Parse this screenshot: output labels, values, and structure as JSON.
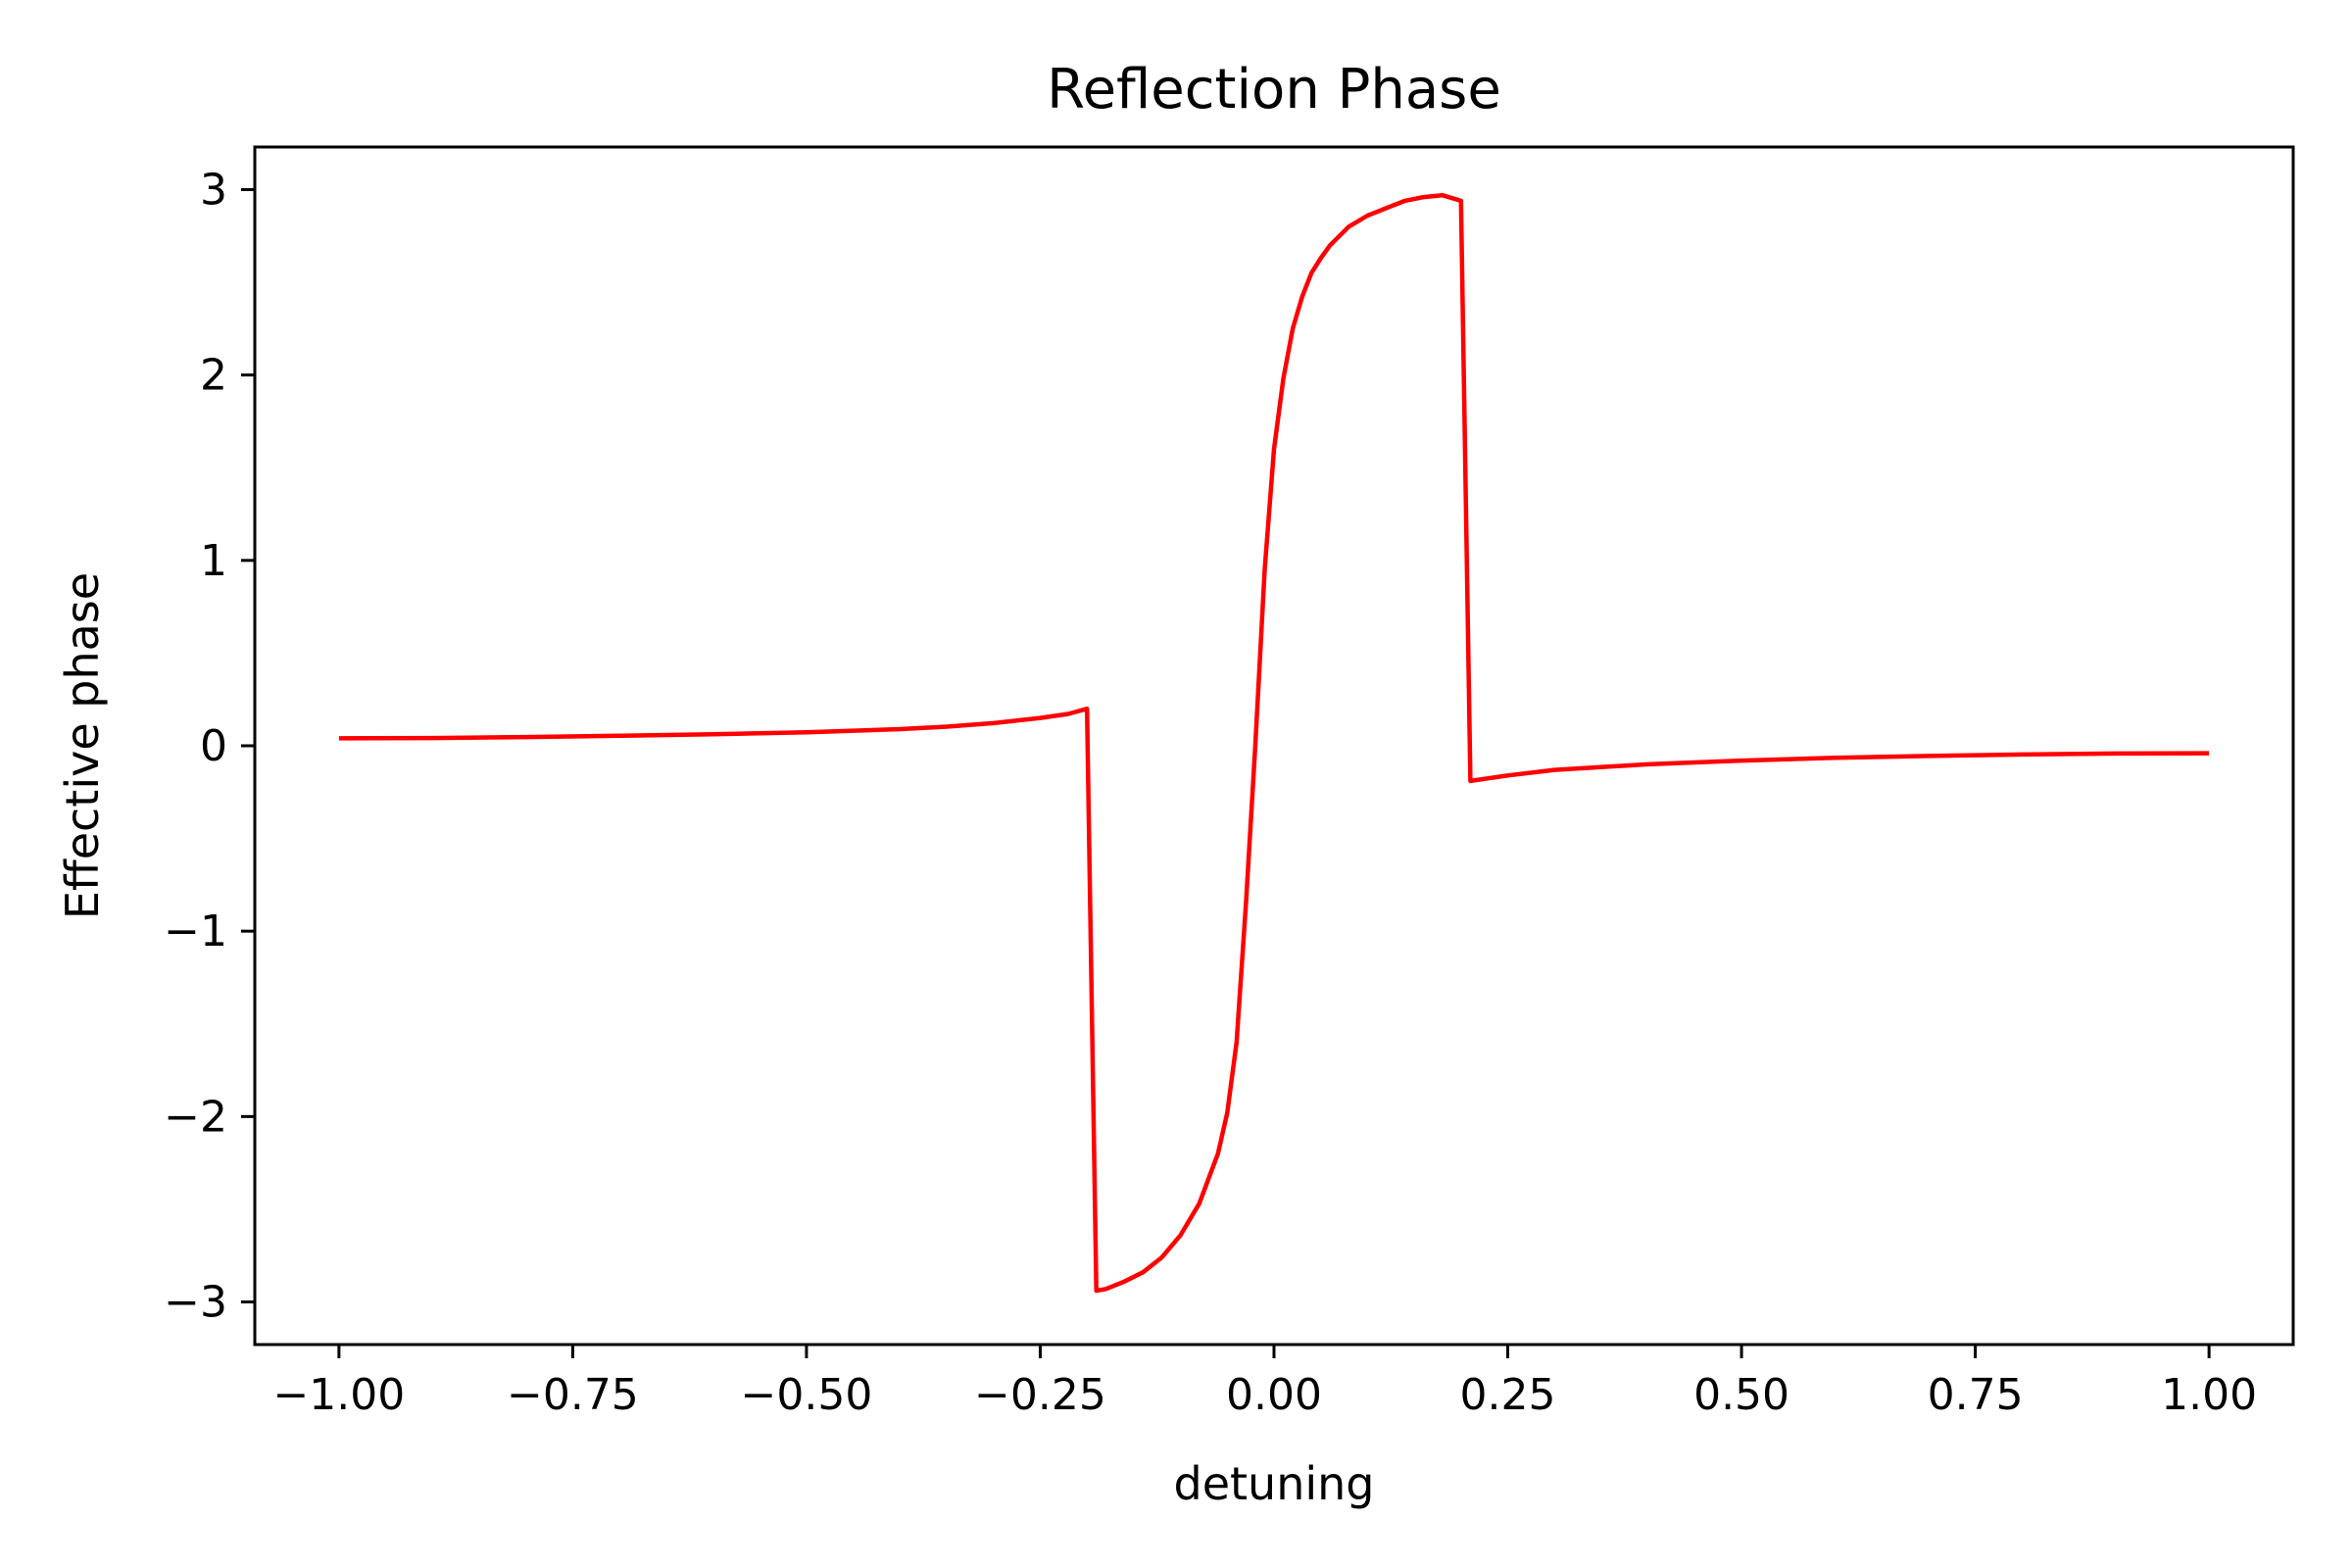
{
  "chart_data": {
    "type": "line",
    "title": "Reflection Phase",
    "xlabel": "detuning",
    "ylabel": "Effective phase",
    "xlim": [
      -1.09,
      1.09
    ],
    "ylim": [
      -3.23,
      3.23
    ],
    "grid": false,
    "x_ticks": [
      -1.0,
      -0.75,
      -0.5,
      -0.25,
      0.0,
      0.25,
      0.5,
      0.75,
      1.0
    ],
    "x_tick_labels": [
      "−1.00",
      "−0.75",
      "−0.50",
      "−0.25",
      "0.00",
      "0.25",
      "0.50",
      "0.75",
      "1.00"
    ],
    "y_ticks": [
      -3,
      -2,
      -1,
      0,
      1,
      2,
      3
    ],
    "y_tick_labels": [
      "−3",
      "−2",
      "−1",
      "0",
      "1",
      "2",
      "3"
    ],
    "series": [
      {
        "color": "#ff0000",
        "x": [
          -1.0,
          -0.9,
          -0.8,
          -0.7,
          -0.6,
          -0.5,
          -0.4,
          -0.35,
          -0.3,
          -0.25,
          -0.22,
          -0.2,
          -0.19,
          -0.18,
          -0.16,
          -0.14,
          -0.12,
          -0.1,
          -0.08,
          -0.06,
          -0.05,
          -0.04,
          -0.03,
          -0.02,
          -0.01,
          0.0,
          0.01,
          0.02,
          0.03,
          0.04,
          0.05,
          0.06,
          0.08,
          0.1,
          0.12,
          0.14,
          0.16,
          0.18,
          0.2,
          0.21,
          0.25,
          0.3,
          0.4,
          0.5,
          0.6,
          0.7,
          0.8,
          0.9,
          1.0
        ],
        "y": [
          0.04,
          0.042,
          0.047,
          0.054,
          0.062,
          0.073,
          0.09,
          0.103,
          0.122,
          0.15,
          0.172,
          0.2,
          -2.94,
          -2.93,
          -2.89,
          -2.84,
          -2.76,
          -2.64,
          -2.47,
          -2.2,
          -1.98,
          -1.6,
          -0.85,
          0.0,
          0.95,
          1.6,
          1.98,
          2.25,
          2.42,
          2.55,
          2.63,
          2.7,
          2.8,
          2.86,
          2.9,
          2.94,
          2.96,
          2.97,
          2.94,
          -0.19,
          -0.16,
          -0.13,
          -0.1,
          -0.08,
          -0.065,
          -0.055,
          -0.047,
          -0.042,
          -0.04
        ]
      }
    ]
  }
}
